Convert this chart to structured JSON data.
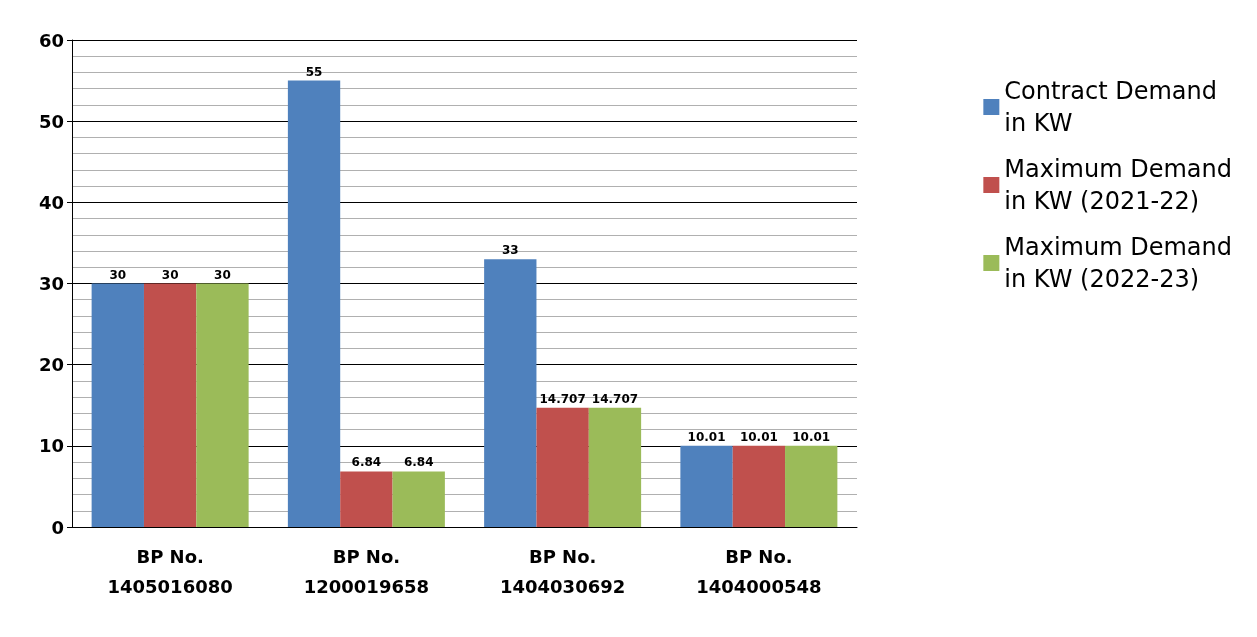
{
  "chart_data": {
    "type": "bar",
    "categories": [
      "BP No.\n1405016080",
      "BP No.\n1200019658",
      "BP No.\n1404030692",
      "BP No.\n1404000548"
    ],
    "series": [
      {
        "name": "Contract Demand\nin KW",
        "color": "#4f81bd",
        "values": [
          30,
          55,
          33,
          10.01
        ]
      },
      {
        "name": "Maximum Demand\nin KW (2021-22)",
        "color": "#c0504d",
        "values": [
          30,
          6.84,
          14.707,
          10.01
        ]
      },
      {
        "name": "Maximum Demand\nin KW (2022-23)",
        "color": "#9bbb59",
        "values": [
          30,
          6.84,
          14.707,
          10.01
        ]
      }
    ],
    "ylim": [
      0,
      60
    ],
    "yticks": [
      0,
      10,
      20,
      30,
      40,
      50,
      60
    ],
    "grid": "y",
    "legend": "right",
    "data_labels": true
  }
}
